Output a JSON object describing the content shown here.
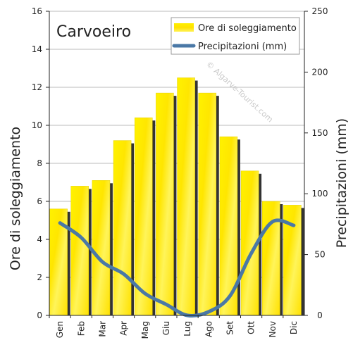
{
  "chart_data": {
    "type": "bar",
    "title": "Carvoeiro",
    "categories": [
      "Gen",
      "Feb",
      "Mar",
      "Apr",
      "Mag",
      "Giu",
      "Lug",
      "Ago",
      "Set",
      "Ott",
      "Nov",
      "Dic"
    ],
    "series": [
      {
        "name": "Ore di soleggiamento",
        "kind": "bar",
        "axis": "left",
        "values": [
          5.6,
          6.8,
          7.1,
          9.2,
          10.4,
          11.7,
          12.5,
          11.7,
          9.4,
          7.6,
          6.0,
          5.8
        ]
      },
      {
        "name": "Precipitazioni (mm)",
        "kind": "line",
        "axis": "right",
        "values": [
          76,
          64,
          44,
          34,
          18,
          9,
          0,
          3,
          16,
          51,
          77,
          74
        ]
      }
    ],
    "ylabel": "Ore di soleggiamento",
    "y2label": "Precipitazioni (mm)",
    "ylim": [
      0,
      16
    ],
    "y2lim": [
      0,
      250
    ],
    "yticks": [
      0,
      2,
      4,
      6,
      8,
      10,
      12,
      14,
      16
    ],
    "y2ticks": [
      0,
      50,
      100,
      150,
      200,
      250
    ],
    "legend_position": "top-right",
    "grid": true,
    "watermark": "© Algarve-Tourist.com",
    "colors": {
      "bar": "#ffee00",
      "bar_shadow": "#333333",
      "line": "#4a78a6",
      "grid": "#bbbbbb"
    }
  }
}
